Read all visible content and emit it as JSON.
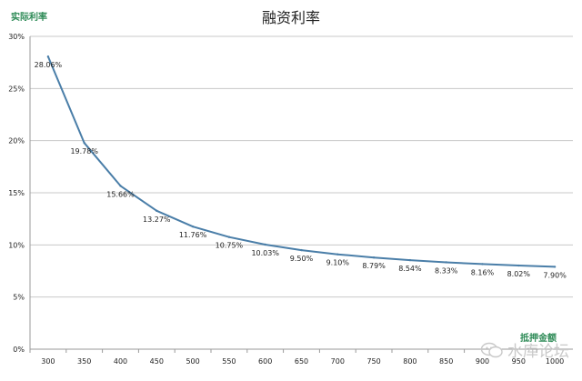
{
  "chart_data": {
    "type": "line",
    "title": "融资利率",
    "ylabel": "实际利率",
    "xlabel": "抵押金额",
    "x": [
      300,
      350,
      400,
      450,
      500,
      550,
      600,
      650,
      700,
      750,
      800,
      850,
      900,
      950,
      1000
    ],
    "series": [
      {
        "values": [
          28.06,
          19.78,
          15.66,
          13.27,
          11.76,
          10.75,
          10.03,
          9.5,
          9.1,
          8.79,
          8.54,
          8.33,
          8.16,
          8.02,
          7.9
        ],
        "labels": [
          "28.06%",
          "19.78%",
          "15.66%",
          "13.27%",
          "11.76%",
          "10.75%",
          "10.03%",
          "9.50%",
          "9.10%",
          "8.79%",
          "8.54%",
          "8.33%",
          "8.16%",
          "8.02%",
          "7.90%"
        ]
      }
    ],
    "x_tick_labels": [
      "300",
      "350",
      "400",
      "450",
      "500",
      "550",
      "600",
      "650",
      "700",
      "750",
      "800",
      "850",
      "900",
      "950",
      "1000"
    ],
    "y_ticks": [
      0,
      5,
      10,
      15,
      20,
      25,
      30
    ],
    "y_tick_labels": [
      "0%",
      "5%",
      "10%",
      "15%",
      "20%",
      "25%",
      "30%"
    ],
    "ylim": [
      0,
      30
    ],
    "grid": true,
    "legend": "none",
    "colors": {
      "line": "#4a7ea8",
      "grid": "#c8c8c8",
      "axis_label": "#2e8b57",
      "text": "#222222"
    }
  },
  "watermark": {
    "text": "水库论坛",
    "icon": "wechat-icon"
  }
}
